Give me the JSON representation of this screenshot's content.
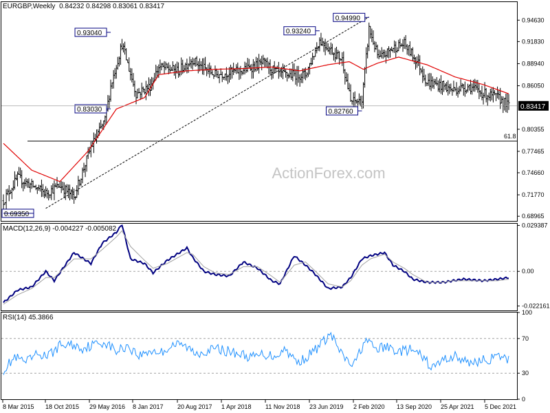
{
  "main_panel": {
    "symbol": "EURGBP,Weekly",
    "ohlc": "0.84232 0.84298 0.83061 0.83417",
    "current_price": "0.83417",
    "watermark": "ActionForex.com",
    "fib_label": "61.8",
    "fib_level": 0.788,
    "price_labels": [
      {
        "text": "0.69350",
        "price": 0.6935,
        "week": 0
      },
      {
        "text": "0.93040",
        "price": 0.9304,
        "week": 76
      },
      {
        "text": "0.83030",
        "price": 0.8303,
        "week": 76
      },
      {
        "text": "0.93240",
        "price": 0.9324,
        "week": 224
      },
      {
        "text": "0.94990",
        "price": 0.9499,
        "week": 259
      },
      {
        "text": "0.82760",
        "price": 0.8276,
        "week": 254
      }
    ],
    "y_ticks": [
      "0.94630",
      "0.91830",
      "0.88940",
      "0.86050",
      "0.80355",
      "0.77465",
      "0.74660",
      "0.71770",
      "0.68965"
    ]
  },
  "macd_panel": {
    "title": "MACD(12,26,9) -0.004227 -0.005082",
    "y_ticks": [
      "0.029387",
      "0.00",
      "-0.022161"
    ]
  },
  "rsi_panel": {
    "title": "RSI(14) 45.3866",
    "y_ticks": [
      "100",
      "70",
      "30",
      "0"
    ]
  },
  "x_axis_labels": [
    "8 Mar 2015",
    "18 Oct 2015",
    "29 May 2016",
    "8 Jan 2017",
    "20 Aug 2017",
    "1 Apr 2018",
    "11 Nov 2018",
    "23 Jun 2019",
    "2 Feb 2020",
    "13 Sep 2020",
    "25 Apr 2021",
    "5 Dec 2021"
  ],
  "colors": {
    "bars": "#000000",
    "ma": "#e00000",
    "macd": "#000080",
    "signal": "#a0a0a0",
    "rsi": "#1e90ff",
    "label_border": "#000080",
    "grid": "#a0a0a0"
  },
  "chart_data": [
    {
      "type": "bar",
      "title": "EURGBP,Weekly",
      "series": [
        {
          "name": "EURGBP price",
          "weeks": [
            0,
            10,
            30,
            40,
            50,
            62,
            72,
            76,
            84,
            94,
            104,
            110,
            124,
            134,
            140,
            150,
            168,
            184,
            196,
            214,
            224,
            240,
            246,
            254,
            259,
            266,
            276,
            284,
            294,
            300,
            312,
            318,
            330,
            340,
            350,
            354,
            358
          ],
          "values": [
            0.71,
            0.74,
            0.72,
            0.73,
            0.715,
            0.78,
            0.815,
            0.86,
            0.915,
            0.85,
            0.86,
            0.885,
            0.88,
            0.895,
            0.885,
            0.875,
            0.88,
            0.89,
            0.875,
            0.875,
            0.92,
            0.895,
            0.84,
            0.84,
            0.935,
            0.895,
            0.91,
            0.915,
            0.89,
            0.865,
            0.86,
            0.855,
            0.86,
            0.85,
            0.845,
            0.84,
            0.834
          ]
        },
        {
          "name": "Moving average",
          "weeks": [
            0,
            20,
            40,
            60,
            80,
            100,
            110,
            130,
            150,
            170,
            190,
            210,
            230,
            245,
            255,
            265,
            280,
            300,
            320,
            340,
            358
          ],
          "values": [
            0.785,
            0.75,
            0.735,
            0.775,
            0.83,
            0.845,
            0.875,
            0.88,
            0.882,
            0.883,
            0.885,
            0.88,
            0.888,
            0.892,
            0.882,
            0.89,
            0.898,
            0.888,
            0.872,
            0.862,
            0.85
          ]
        }
      ],
      "ylim": [
        0.6835,
        0.97
      ]
    },
    {
      "type": "line",
      "title": "MACD(12,26,9) -0.004227 -0.005082",
      "series": [
        {
          "name": "MACD",
          "weeks": [
            0,
            10,
            20,
            30,
            36,
            50,
            62,
            70,
            80,
            84,
            90,
            100,
            106,
            116,
            130,
            134,
            142,
            150,
            160,
            170,
            180,
            190,
            196,
            206,
            214,
            220,
            230,
            240,
            246,
            254,
            260,
            270,
            276,
            284,
            290,
            300,
            312,
            318,
            326,
            340,
            350,
            358
          ],
          "values": [
            -0.02,
            -0.012,
            -0.01,
            0.0,
            -0.006,
            0.012,
            0.005,
            0.018,
            0.025,
            0.03,
            0.008,
            0.005,
            -0.001,
            0.007,
            0.015,
            0.009,
            0.0,
            -0.002,
            -0.003,
            0.006,
            0.002,
            -0.006,
            -0.008,
            0.01,
            0.004,
            -0.001,
            -0.011,
            -0.01,
            -0.004,
            0.008,
            0.01,
            0.012,
            0.004,
            0.0,
            -0.005,
            -0.007,
            -0.007,
            -0.006,
            -0.005,
            -0.006,
            -0.005,
            -0.004
          ]
        },
        {
          "name": "Signal",
          "weeks": [
            0,
            10,
            20,
            30,
            36,
            50,
            62,
            70,
            80,
            84,
            90,
            100,
            106,
            116,
            130,
            134,
            142,
            150,
            160,
            170,
            180,
            190,
            196,
            206,
            214,
            220,
            230,
            240,
            246,
            254,
            260,
            270,
            276,
            284,
            290,
            300,
            312,
            318,
            326,
            340,
            350,
            358
          ],
          "values": [
            -0.021,
            -0.015,
            -0.011,
            -0.004,
            -0.004,
            0.008,
            0.008,
            0.014,
            0.022,
            0.026,
            0.016,
            0.007,
            0.002,
            0.005,
            0.012,
            0.011,
            0.003,
            -0.001,
            -0.002,
            0.003,
            0.003,
            -0.003,
            -0.007,
            0.004,
            0.006,
            0.001,
            -0.008,
            -0.01,
            -0.006,
            0.004,
            0.008,
            0.011,
            0.006,
            0.002,
            -0.002,
            -0.007,
            -0.007,
            -0.006,
            -0.006,
            -0.006,
            -0.006,
            -0.005
          ]
        }
      ],
      "ylim": [
        -0.025,
        0.0305
      ]
    },
    {
      "type": "line",
      "title": "RSI(14) 45.3866",
      "series": [
        {
          "name": "RSI",
          "weeks": [
            0,
            8,
            16,
            24,
            32,
            40,
            48,
            56,
            64,
            72,
            80,
            88,
            96,
            104,
            112,
            120,
            128,
            136,
            144,
            152,
            160,
            168,
            176,
            184,
            192,
            200,
            208,
            216,
            224,
            232,
            240,
            248,
            256,
            264,
            272,
            280,
            288,
            296,
            304,
            312,
            320,
            328,
            336,
            344,
            352,
            358
          ],
          "values": [
            34,
            48,
            42,
            52,
            50,
            62,
            63,
            59,
            63,
            66,
            55,
            62,
            50,
            56,
            54,
            63,
            62,
            53,
            56,
            58,
            55,
            52,
            48,
            52,
            50,
            58,
            42,
            50,
            62,
            75,
            50,
            38,
            68,
            58,
            60,
            55,
            57,
            50,
            36,
            46,
            50,
            42,
            44,
            46,
            49,
            45
          ]
        }
      ],
      "ylim": [
        0,
        100
      ]
    }
  ]
}
